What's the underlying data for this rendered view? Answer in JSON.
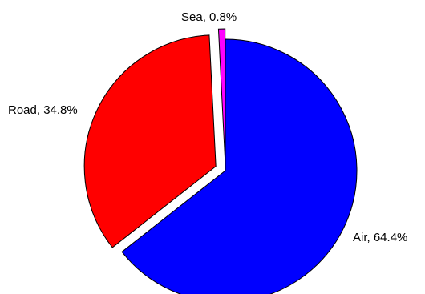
{
  "chart_data": {
    "type": "pie",
    "slices": [
      {
        "label": "Air, 64.4%",
        "value": 64.4,
        "color": "#0000ff",
        "exploded": false
      },
      {
        "label": "Road, 34.8%",
        "value": 34.8,
        "color": "#ff0000",
        "exploded": true
      },
      {
        "label": "Sea, 0.8%",
        "value": 0.8,
        "color": "#ff00ff",
        "exploded": true
      }
    ],
    "start": "12 o'clock",
    "direction": "clockwise"
  }
}
